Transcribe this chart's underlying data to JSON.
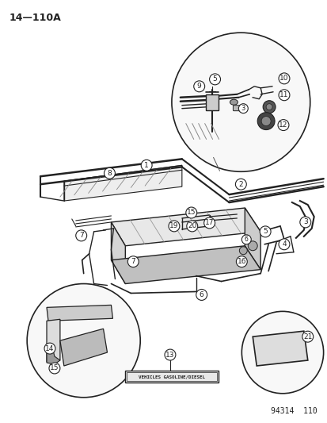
{
  "title": "14—110A",
  "diagram_label": "94314  110",
  "label_box_text": "VEHICLES GASOLINE/DIESEL",
  "background_color": "#ffffff",
  "fig_width": 4.14,
  "fig_height": 5.33,
  "dpi": 100
}
